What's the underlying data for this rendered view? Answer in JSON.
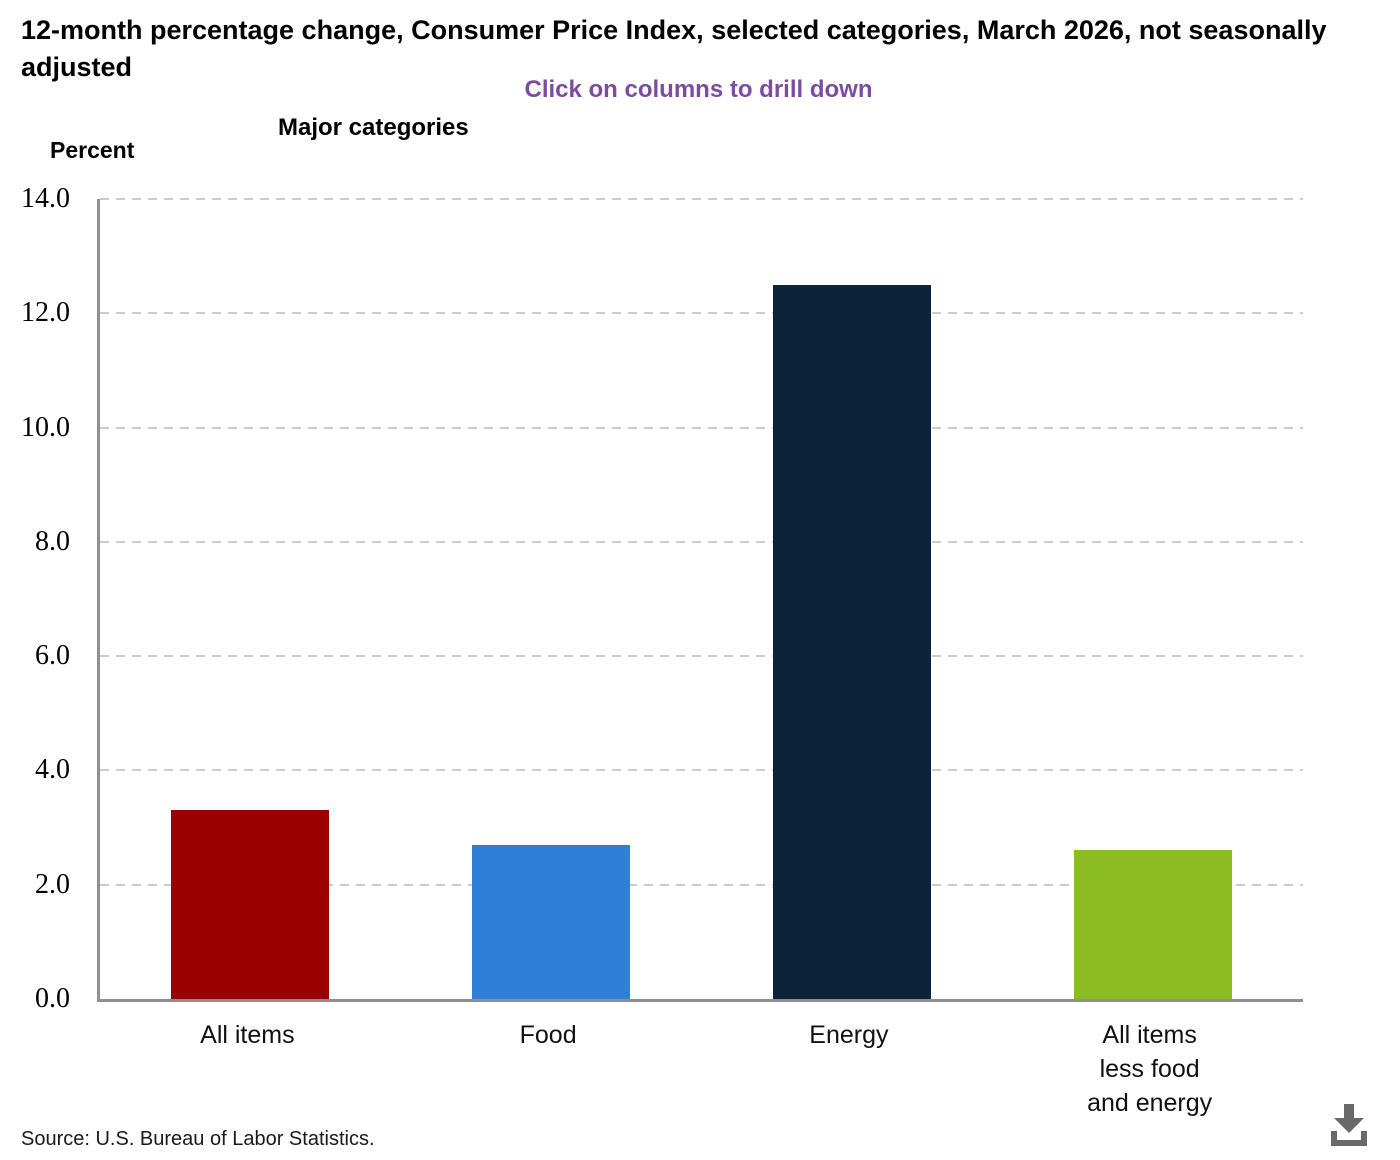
{
  "header": {
    "title": "12-month percentage change, Consumer Price Index, selected categories, March 2026, not seasonally adjusted",
    "subtitle": "Click on columns to drill down",
    "group_label": "Major categories",
    "y_axis_unit_label": "Percent"
  },
  "footer": {
    "source": "Source: U.S. Bureau of Labor Statistics.",
    "download_icon": "download-icon"
  },
  "colors": {
    "subtitle_text": "#7a4da0",
    "axis_line": "#8f8f8f",
    "gridline": "#cccccc",
    "download_icon": "#696969"
  },
  "chart_data": {
    "type": "bar",
    "title": "12-month percentage change, Consumer Price Index, selected categories, March 2026, not seasonally adjusted",
    "subtitle": "Click on columns to drill down",
    "group_label": "Major categories",
    "ylabel": "Percent",
    "xlabel": "",
    "categories": [
      "All items",
      "Food",
      "Energy",
      "All items less food and energy"
    ],
    "category_label_lines": [
      [
        "All items"
      ],
      [
        "Food"
      ],
      [
        "Energy"
      ],
      [
        "All items",
        "less food",
        "and energy"
      ]
    ],
    "values": [
      3.3,
      2.7,
      12.5,
      2.6
    ],
    "bar_colors": [
      "#990000",
      "#2f7ed8",
      "#0d233a",
      "#8bbc21"
    ],
    "ylim": [
      0,
      14
    ],
    "ytick_interval": 2.0,
    "ytick_labels": [
      "14.0",
      "12.0",
      "10.0",
      "8.0",
      "6.0",
      "4.0",
      "2.0",
      "0.0"
    ],
    "grid": "horizontal-dashed",
    "legend": "none"
  }
}
